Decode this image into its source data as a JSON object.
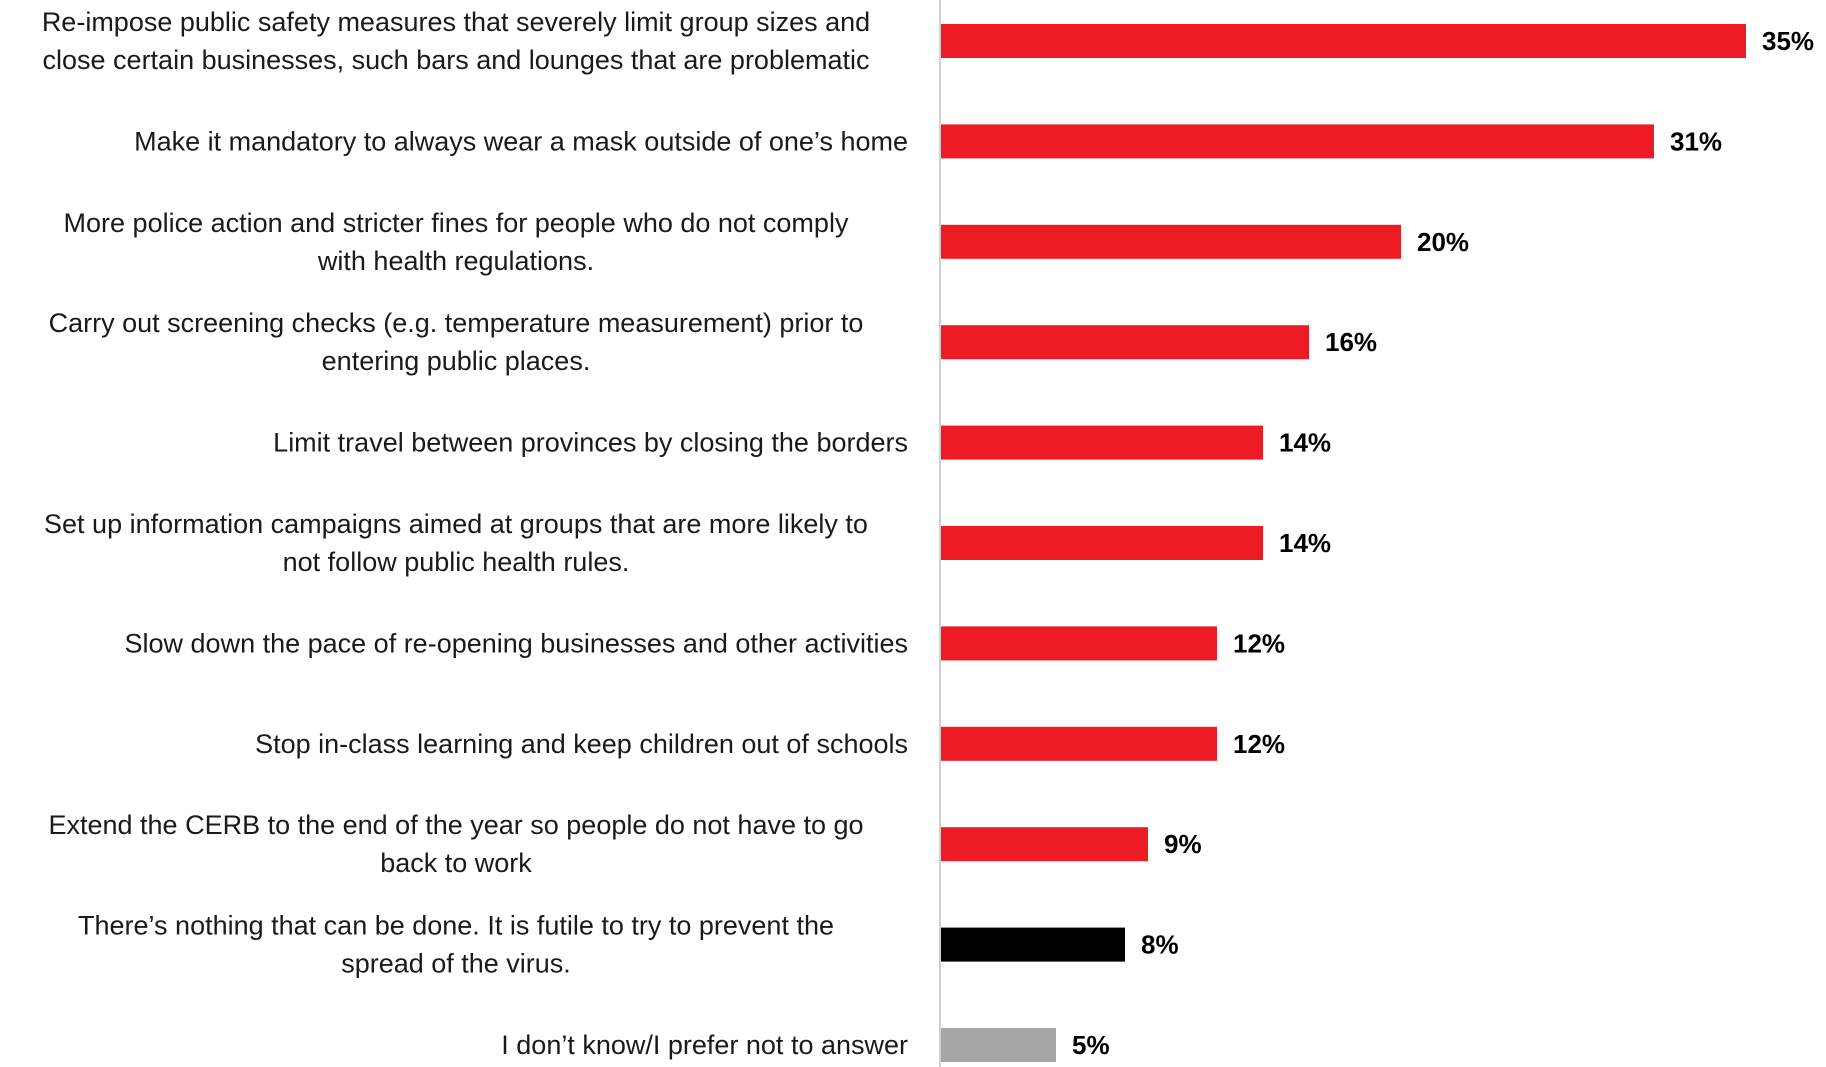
{
  "chart_data": {
    "type": "bar",
    "orientation": "horizontal",
    "title": "",
    "xlabel": "",
    "ylabel": "",
    "xlim": [
      0,
      35
    ],
    "grid": false,
    "legend": "none",
    "value_suffix": "%",
    "categories": [
      [
        "Re-impose public safety measures that severely limit group sizes and",
        "close certain businesses, such bars and lounges that are problematic"
      ],
      [
        "Make it mandatory to always wear a mask outside of one’s home"
      ],
      [
        "More police action and stricter fines for people who do not comply",
        "with health regulations."
      ],
      [
        "Carry out screening checks (e.g. temperature measurement) prior to",
        "entering public places."
      ],
      [
        "Limit travel between provinces by closing the borders"
      ],
      [
        "Set up information campaigns aimed at groups that are more likely to",
        "not follow public health rules."
      ],
      [
        "Slow down the pace of re-opening businesses and other activities"
      ],
      [
        "Stop in-class learning and keep children out of schools"
      ],
      [
        "Extend the CERB to the end of the year so people do not have to go",
        "back to work"
      ],
      [
        "There’s nothing that can be done. It is futile to try to prevent the",
        "spread of the virus."
      ],
      [
        "I don’t know/I prefer not to answer"
      ]
    ],
    "values": [
      35,
      31,
      20,
      16,
      14,
      14,
      12,
      12,
      9,
      8,
      5
    ],
    "bar_colors": [
      "#ed1c24",
      "#ed1c24",
      "#ed1c24",
      "#ed1c24",
      "#ed1c24",
      "#ed1c24",
      "#ed1c24",
      "#ed1c24",
      "#ed1c24",
      "#000000",
      "#a6a6a6"
    ]
  },
  "colors": {
    "axis_line": "#d0d0d0"
  }
}
